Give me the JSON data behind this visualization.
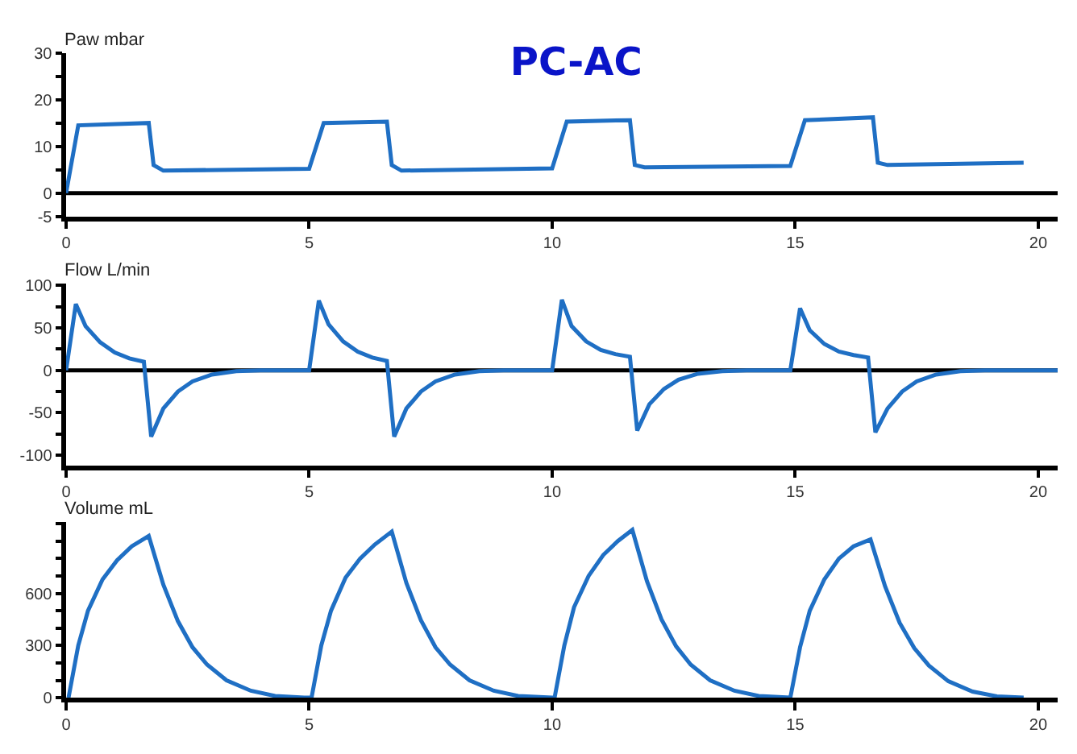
{
  "chart_data": [
    {
      "type": "line",
      "title": "PC-AC",
      "ylabel": "Paw mbar",
      "xlim": [
        0,
        20.4
      ],
      "ylim": [
        -5,
        30
      ],
      "xticks": [
        0,
        5,
        10,
        15,
        20
      ],
      "yticks": [
        -5,
        0,
        {
          "value": 5,
          "label": null
        },
        10,
        {
          "value": 15,
          "label": null
        },
        20,
        {
          "value": 25,
          "label": null
        },
        30
      ],
      "ref_lines": [
        {
          "axis": "y",
          "value": 0,
          "color": "#000000"
        }
      ],
      "series": [
        {
          "color": "#1f6fc4",
          "x": [
            0,
            0.25,
            1.7,
            1.8,
            2.0,
            5.0,
            5.3,
            6.6,
            6.7,
            6.9,
            10.0,
            10.3,
            11.6,
            11.7,
            11.9,
            14.9,
            15.2,
            16.6,
            16.7,
            16.9,
            19.7
          ],
          "values": [
            0,
            14.5,
            15,
            6,
            4.8,
            5.2,
            15,
            15.3,
            6,
            4.8,
            5.3,
            15.3,
            15.6,
            6,
            5.5,
            5.8,
            15.6,
            16.2,
            6.5,
            6,
            6.5
          ]
        }
      ]
    },
    {
      "type": "line",
      "ylabel": "Flow L/min",
      "xlim": [
        0,
        20.4
      ],
      "ylim": [
        -112,
        102
      ],
      "xticks": [
        0,
        5,
        10,
        15,
        20
      ],
      "yticks": [
        -100,
        {
          "value": -75,
          "label": null
        },
        -50,
        {
          "value": -25,
          "label": null
        },
        0,
        {
          "value": 25,
          "label": null
        },
        50,
        {
          "value": 75,
          "label": null
        },
        100
      ],
      "ref_lines": [
        {
          "axis": "y",
          "value": 0,
          "color": "#000000"
        }
      ],
      "series": [
        {
          "color": "#1f6fc4",
          "x": [
            0,
            0.2,
            0.4,
            0.7,
            1.0,
            1.3,
            1.6,
            1.75,
            2.0,
            2.3,
            2.6,
            3.0,
            3.5,
            4.0,
            5.0,
            5.2,
            5.4,
            5.7,
            6.0,
            6.3,
            6.6,
            6.75,
            7.0,
            7.3,
            7.6,
            8.0,
            8.5,
            9.0,
            10.0,
            10.2,
            10.4,
            10.7,
            11.0,
            11.3,
            11.6,
            11.75,
            12.0,
            12.3,
            12.6,
            13.0,
            13.5,
            14.0,
            14.9,
            15.1,
            15.3,
            15.6,
            15.9,
            16.2,
            16.5,
            16.65,
            16.9,
            17.2,
            17.5,
            17.9,
            18.4,
            18.9,
            20.4
          ],
          "values": [
            0,
            78,
            52,
            33,
            21,
            14,
            10,
            -78,
            -45,
            -25,
            -13,
            -5,
            -1,
            0,
            0,
            82,
            54,
            34,
            22,
            15,
            11,
            -78,
            -45,
            -25,
            -13,
            -5,
            -1,
            0,
            0,
            83,
            52,
            34,
            24,
            19,
            16,
            -71,
            -40,
            -22,
            -11,
            -4,
            -1,
            0,
            0,
            73,
            47,
            31,
            22,
            18,
            15,
            -73,
            -45,
            -25,
            -13,
            -5,
            -1,
            0,
            0
          ]
        }
      ]
    },
    {
      "type": "line",
      "ylabel": "Volume mL",
      "xlim": [
        0,
        20.4
      ],
      "ylim": [
        0,
        1010
      ],
      "xticks": [
        0,
        5,
        10,
        15,
        20
      ],
      "yticks": [
        0,
        {
          "value": 100,
          "label": null
        },
        {
          "value": 200,
          "label": null
        },
        300,
        {
          "value": 400,
          "label": null
        },
        {
          "value": 500,
          "label": null
        },
        600,
        {
          "value": 700,
          "label": null
        },
        {
          "value": 800,
          "label": null
        },
        {
          "value": 900,
          "label": null
        },
        {
          "value": 1000,
          "label": null
        }
      ],
      "series": [
        {
          "color": "#1f6fc4",
          "x": [
            0.05,
            0.25,
            0.45,
            0.75,
            1.05,
            1.35,
            1.7,
            2.0,
            2.3,
            2.6,
            2.9,
            3.3,
            3.8,
            4.3,
            4.9,
            5.05,
            5.25,
            5.45,
            5.75,
            6.05,
            6.35,
            6.7,
            7.0,
            7.3,
            7.6,
            7.9,
            8.3,
            8.8,
            9.3,
            10.0,
            10.05,
            10.25,
            10.45,
            10.75,
            11.05,
            11.35,
            11.65,
            11.95,
            12.25,
            12.55,
            12.85,
            13.25,
            13.75,
            14.25,
            14.9,
            15.1,
            15.3,
            15.6,
            15.9,
            16.2,
            16.55,
            16.85,
            17.15,
            17.45,
            17.75,
            18.15,
            18.65,
            19.15,
            19.7
          ],
          "values": [
            0,
            300,
            500,
            680,
            790,
            870,
            930,
            650,
            440,
            290,
            190,
            100,
            40,
            10,
            0,
            0,
            300,
            500,
            690,
            800,
            880,
            955,
            660,
            445,
            290,
            190,
            100,
            40,
            10,
            0,
            0,
            300,
            520,
            700,
            820,
            900,
            965,
            670,
            450,
            295,
            190,
            100,
            40,
            10,
            0,
            290,
            500,
            680,
            800,
            870,
            910,
            640,
            430,
            285,
            185,
            95,
            35,
            8,
            0
          ]
        }
      ]
    }
  ]
}
